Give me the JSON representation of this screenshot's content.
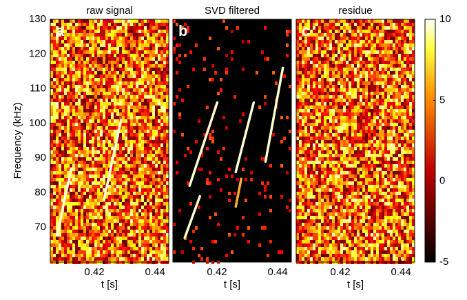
{
  "chart_data": [
    {
      "type": "heatmap",
      "title": "raw signal",
      "panel_label": "a",
      "xlabel": "t [s]",
      "ylabel": "Frequency (kHz)",
      "xlim": [
        0.4055,
        0.4445
      ],
      "xticks": [
        0.42,
        0.44
      ],
      "ylim": [
        60,
        130
      ],
      "yticks": [
        70,
        80,
        90,
        100,
        110,
        120,
        130
      ],
      "background": "noisy",
      "series": [
        {
          "color": "#ffffe0",
          "x": [
            0.4078,
            0.4124
          ],
          "values": [
            68,
            87
          ]
        },
        {
          "color": "#ffffe0",
          "x": [
            0.4232,
            0.4288
          ],
          "values": [
            78,
            101
          ]
        }
      ]
    },
    {
      "type": "heatmap",
      "title": "SVD filtered",
      "panel_label": "b",
      "xlabel": "t [s]",
      "xlim": [
        0.4055,
        0.4445
      ],
      "xticks": [
        0.42,
        0.44
      ],
      "ylim": [
        60,
        130
      ],
      "background": "sparse",
      "series": [
        {
          "color": "#ffffd0",
          "x": [
            0.4094,
            0.4144
          ],
          "values": [
            67,
            79
          ]
        },
        {
          "color": "#ffffd0",
          "x": [
            0.411,
            0.4201
          ],
          "values": [
            82,
            106
          ]
        },
        {
          "color": "#ffb030",
          "x": [
            0.4262,
            0.428
          ],
          "values": [
            76,
            84
          ]
        },
        {
          "color": "#ffffd0",
          "x": [
            0.4262,
            0.4321
          ],
          "values": [
            86,
            106
          ]
        },
        {
          "color": "#ffffd0",
          "x": [
            0.436,
            0.4417
          ],
          "values": [
            89,
            116
          ]
        }
      ]
    },
    {
      "type": "heatmap",
      "title": "residue",
      "panel_label": "c",
      "xlabel": "t [s]",
      "xlim": [
        0.4055,
        0.4445
      ],
      "xticks": [
        0.42,
        0.44
      ],
      "ylim": [
        60,
        130
      ],
      "background": "noisy",
      "series": [],
      "clim": [
        -5,
        10
      ],
      "cticks": [
        -5,
        0,
        5,
        10
      ]
    }
  ]
}
